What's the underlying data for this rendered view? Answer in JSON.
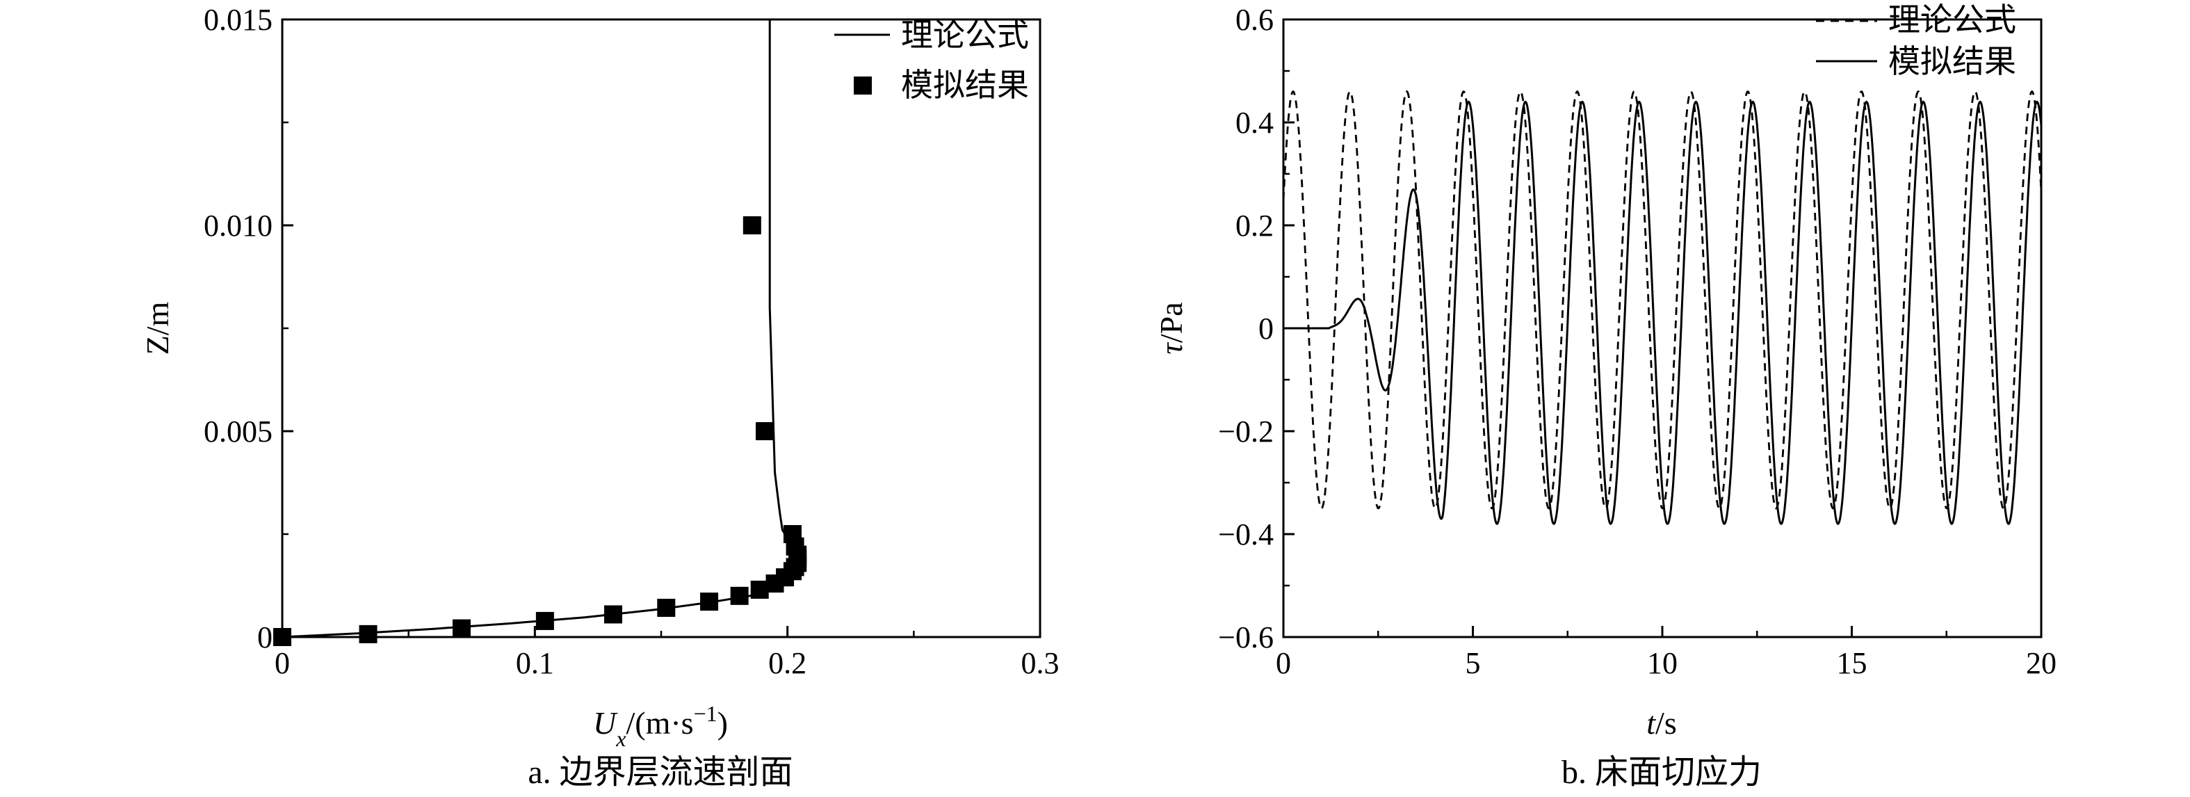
{
  "chart_data": [
    {
      "type": "line",
      "panel": "a",
      "caption": "a. 边界层流速剖面",
      "xlabel": "Ux/(m·s−1)",
      "xlabel_main": "U",
      "xlabel_sub": "x",
      "xlabel_rest": "/(m·s",
      "xlabel_sup": "−1",
      "xlabel_end": ")",
      "ylabel": "Z/m",
      "xlim": [
        0,
        0.3
      ],
      "ylim": [
        0,
        0.015
      ],
      "xticks": [
        0,
        0.1,
        0.2,
        0.3
      ],
      "xtick_labels": [
        "0",
        "0.1",
        "0.2",
        "0.3"
      ],
      "yticks": [
        0,
        0.005,
        0.01,
        0.015
      ],
      "ytick_labels": [
        "0",
        "0.005",
        "0.010",
        "0.015"
      ],
      "legend": "top-right",
      "series": [
        {
          "name": "理论公式",
          "style": "solid line",
          "x": [
            0,
            0.03,
            0.06,
            0.09,
            0.12,
            0.15,
            0.17,
            0.185,
            0.195,
            0.2,
            0.203,
            0.205,
            0.206,
            0.205,
            0.203,
            0.2,
            0.198,
            0.197,
            0.196,
            0.195,
            0.194,
            0.193,
            0.193,
            0.193
          ],
          "y": [
            0,
            9e-05,
            0.0002,
            0.00033,
            0.00048,
            0.00068,
            0.00085,
            0.001,
            0.00115,
            0.0013,
            0.00145,
            0.0016,
            0.0018,
            0.002,
            0.0022,
            0.0024,
            0.0026,
            0.003,
            0.0035,
            0.004,
            0.006,
            0.008,
            0.012,
            0.015
          ]
        },
        {
          "name": "模拟结果",
          "style": "filled square markers",
          "x": [
            0,
            0.034,
            0.071,
            0.104,
            0.131,
            0.152,
            0.169,
            0.181,
            0.189,
            0.195,
            0.199,
            0.202,
            0.203,
            0.204,
            0.204,
            0.204,
            0.203,
            0.202,
            0.191,
            0.186
          ],
          "y": [
            0,
            7e-05,
            0.00021,
            0.00039,
            0.00055,
            0.00071,
            0.00086,
            0.001,
            0.00115,
            0.0013,
            0.00145,
            0.0016,
            0.0017,
            0.0018,
            0.0019,
            0.002,
            0.0022,
            0.0025,
            0.005,
            0.01
          ]
        }
      ]
    },
    {
      "type": "line",
      "panel": "b",
      "caption": "b. 床面切应力",
      "xlabel": "t/s",
      "xlabel_main": "t",
      "xlabel_rest": "/s",
      "ylabel": "τ/Pa",
      "ylabel_main": "τ",
      "ylabel_rest": "/Pa",
      "xlim": [
        0,
        20
      ],
      "ylim": [
        -0.6,
        0.6
      ],
      "xticks": [
        0,
        5,
        10,
        15,
        20
      ],
      "xtick_labels": [
        "0",
        "5",
        "10",
        "15",
        "20"
      ],
      "yticks": [
        -0.6,
        -0.4,
        -0.2,
        0,
        0.2,
        0.4,
        0.6
      ],
      "ytick_labels": [
        "−0.6",
        "−0.4",
        "−0.2",
        "0",
        "0.2",
        "0.4",
        "0.6"
      ],
      "legend": "top-right",
      "series": [
        {
          "name": "理论公式",
          "style": "dashed line",
          "function": "tau(t) = 0.05 + 0.41*sin(2*pi*(t-0.05)/1.5 + pi/2 - 2*pi*0.25/1.5)",
          "x": [
            0,
            0.3,
            0.8,
            1.5,
            1.8,
            2.3,
            3.2,
            3.8,
            4.7,
            5.3,
            6.2,
            6.8,
            7.7,
            8.3,
            9.2,
            9.8,
            10.7,
            11.3,
            12.2,
            12.8,
            13.7,
            14.3,
            15.2,
            15.8,
            16.7,
            17.3,
            18.2,
            18.8,
            19.7,
            20
          ],
          "y": [
            0.2,
            0.46,
            -0.35,
            0.46,
            0.46,
            -0.35,
            0.46,
            -0.35,
            0.46,
            -0.35,
            0.46,
            -0.35,
            0.46,
            -0.35,
            0.46,
            -0.35,
            0.46,
            -0.35,
            0.46,
            -0.35,
            0.46,
            -0.35,
            0.46,
            -0.35,
            0.46,
            -0.35,
            0.46,
            -0.35,
            0.46,
            0.2
          ]
        },
        {
          "name": "模拟结果",
          "style": "solid line",
          "x": [
            0,
            1.0,
            1.8,
            2.5,
            3.3,
            3.9,
            4.8,
            5.4,
            6.3,
            6.9,
            7.8,
            8.4,
            9.3,
            9.9,
            10.8,
            11.4,
            12.3,
            12.9,
            13.8,
            14.4,
            15.3,
            15.9,
            16.8,
            17.4,
            18.3,
            18.9,
            19.8,
            20
          ],
          "y": [
            0,
            0,
            0.015,
            -0.09,
            0.25,
            -0.36,
            0.44,
            -0.4,
            0.44,
            -0.39,
            0.44,
            -0.38,
            0.44,
            -0.38,
            0.44,
            -0.38,
            0.44,
            -0.38,
            0.44,
            -0.38,
            0.44,
            -0.38,
            0.44,
            -0.38,
            0.44,
            -0.38,
            0.44,
            0.23
          ]
        }
      ]
    }
  ]
}
